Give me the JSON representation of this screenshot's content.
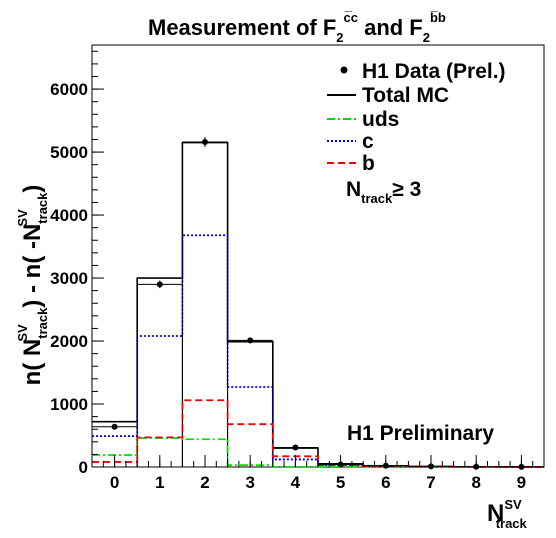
{
  "chart_data": {
    "type": "histogram",
    "title_text": "Measurement of F",
    "title_c_sup": "c̅c",
    "title_and": " and F",
    "title_b_sup": "b̅b",
    "title_sub": "2",
    "xlabel_main": "N",
    "xlabel_sup": "SV",
    "xlabel_sub": "track",
    "ylabel": "n( N_track^SV ) - n( -N_track^SV )",
    "ylabel_n1": "n( N",
    "ylabel_mid": " ) - n( -N",
    "ylabel_end": " )",
    "x_ticks": [
      "0",
      "1",
      "2",
      "3",
      "4",
      "5",
      "6",
      "7",
      "8",
      "9"
    ],
    "y_ticks": [
      "0",
      "1000",
      "2000",
      "3000",
      "4000",
      "5000",
      "6000"
    ],
    "xlim": [
      -0.5,
      9.5
    ],
    "ylim": [
      0,
      6700
    ],
    "bins": [
      0,
      1,
      2,
      3,
      4,
      5,
      6,
      7,
      8,
      9
    ],
    "series": [
      {
        "name": "Total MC",
        "style": "solid",
        "color": "#000000",
        "values": [
          720,
          3000,
          5150,
          1990,
          300,
          50,
          20,
          8,
          4,
          2
        ]
      },
      {
        "name": "uds",
        "style": "dashdot",
        "color": "#00dd00",
        "values": [
          190,
          460,
          440,
          30,
          -10,
          0,
          0,
          0,
          0,
          0
        ]
      },
      {
        "name": "c",
        "style": "dotted",
        "color": "#0000cc",
        "values": [
          490,
          2080,
          3680,
          1270,
          120,
          30,
          10,
          5,
          2,
          1
        ]
      },
      {
        "name": "b",
        "style": "dashed",
        "color": "#ee0000",
        "values": [
          80,
          470,
          1060,
          680,
          170,
          30,
          15,
          5,
          2,
          1
        ]
      }
    ],
    "data": {
      "name": "H1 Data (Prel.)",
      "values": [
        640,
        2900,
        5160,
        2010,
        310,
        40,
        20,
        10,
        4,
        2
      ],
      "errors": [
        40,
        60,
        80,
        45,
        20,
        10,
        8,
        5,
        3,
        2
      ]
    },
    "legend": [
      {
        "label": "H1 Data (Prel.)",
        "kind": "marker"
      },
      {
        "label": "Total MC",
        "kind": "solid",
        "color": "#000000"
      },
      {
        "label": "uds",
        "kind": "dashdot",
        "color": "#00dd00"
      },
      {
        "label": "c",
        "kind": "dotted",
        "color": "#0000cc"
      },
      {
        "label": "b",
        "kind": "dashed",
        "color": "#ee0000"
      }
    ],
    "cut_label_main": "N",
    "cut_label_sub": "track",
    "cut_label_rest": "≥ 3",
    "annotation": "H1 Preliminary",
    "legend_position": "top-right"
  }
}
